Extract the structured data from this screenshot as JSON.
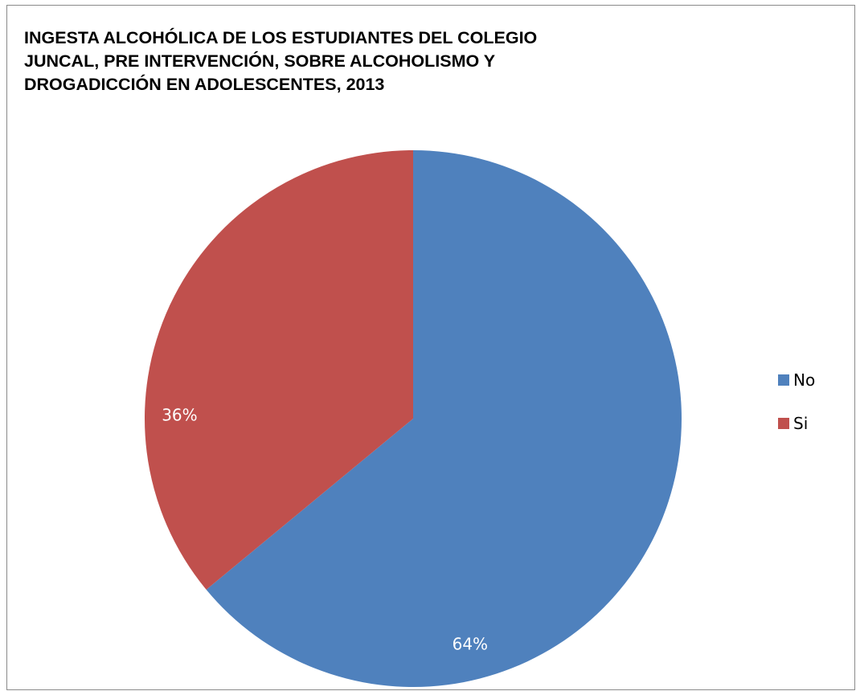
{
  "chart_data": {
    "type": "pie",
    "title": "INGESTA ALCOHÓLICA DE LOS ESTUDIANTES DEL COLEGIO\nJUNCAL, PRE INTERVENCIÓN, SOBRE ALCOHOLISMO Y\nDROGADICCIÓN EN ADOLESCENTES, 2013",
    "categories": [
      "No",
      "Si"
    ],
    "values": [
      64,
      36
    ],
    "data_labels": [
      "64%",
      "36%"
    ],
    "colors": [
      "#4f81bd",
      "#c0504d"
    ],
    "legend_position": "right"
  }
}
